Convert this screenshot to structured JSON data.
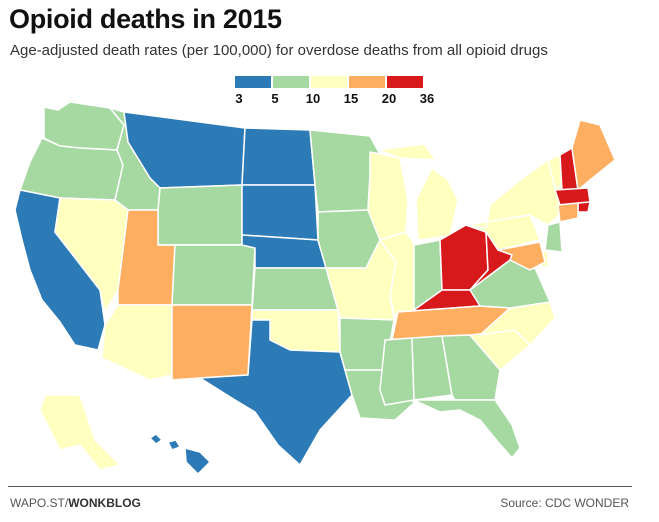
{
  "title": "Opioid deaths in 2015",
  "subtitle": "Age-adjusted death rates (per 100,000) for overdose deaths from all opioid drugs",
  "legend": {
    "breaks": [
      "3",
      "5",
      "10",
      "15",
      "20",
      "36"
    ],
    "colors": [
      "#2c7bb6",
      "#a6d8a1",
      "#ffffbf",
      "#fdae61",
      "#d7191c"
    ]
  },
  "footer": {
    "source_prefix": "WAPO.ST/",
    "source_brand": "WONKBLOG",
    "credit": "Source: CDC WONDER"
  },
  "map_data": {
    "WA": 1,
    "OR": 1,
    "CA": 0,
    "NV": 2,
    "ID": 1,
    "MT": 0,
    "WY": 1,
    "UT": 3,
    "AZ": 2,
    "CO": 1,
    "NM": 3,
    "ND": 0,
    "SD": 0,
    "NE": 0,
    "KS": 1,
    "OK": 2,
    "TX": 0,
    "MN": 1,
    "IA": 1,
    "MO": 2,
    "AR": 1,
    "LA": 1,
    "WI": 2,
    "IL": 2,
    "MI": 2,
    "IN": 1,
    "OH": 4,
    "KY": 4,
    "TN": 3,
    "MS": 1,
    "AL": 1,
    "GA": 1,
    "FL": 1,
    "SC": 2,
    "NC": 2,
    "VA": 1,
    "WV": 4,
    "PA": 2,
    "NY": 2,
    "VT": 2,
    "NH": 4,
    "ME": 3,
    "MA": 4,
    "RI": 4,
    "CT": 3,
    "NJ": 1,
    "DE": 2,
    "MD": 3,
    "AK": 2,
    "HI": 0
  }
}
